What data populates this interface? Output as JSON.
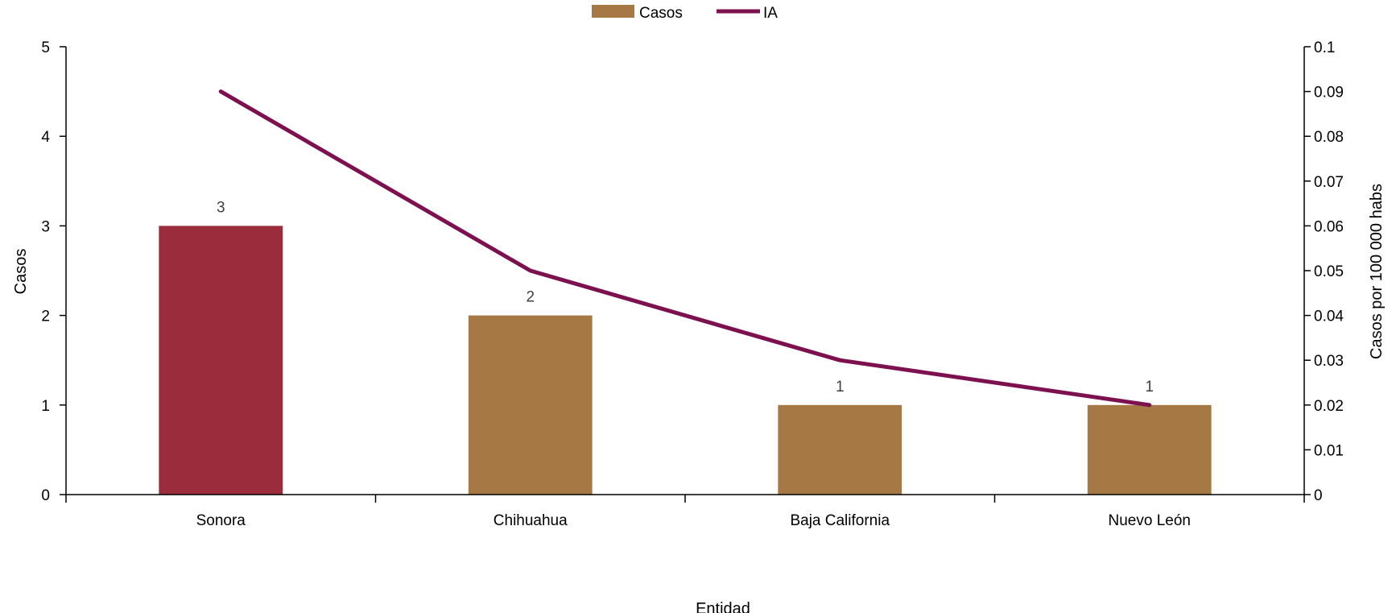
{
  "chart_data": {
    "type": "bar",
    "categories": [
      "Sonora",
      "Chihuahua",
      "Baja California",
      "Nuevo León"
    ],
    "series": [
      {
        "name": "Casos",
        "type": "bar",
        "axis": "left",
        "values": [
          3,
          2,
          1,
          1
        ],
        "data_labels": [
          "3",
          "2",
          "1",
          "1"
        ],
        "color": "#A67944",
        "point_colors": [
          "#9A2C3C",
          "#A67944",
          "#A67944",
          "#A67944"
        ]
      },
      {
        "name": "IA",
        "type": "line",
        "axis": "right",
        "values": [
          0.09,
          0.05,
          0.03,
          0.02
        ],
        "color": "#7D1150"
      }
    ],
    "xlabel": "Entidad",
    "ylabel": "Casos",
    "y2label": "Casos por 100 000 habs",
    "ylim": [
      0,
      5
    ],
    "y2lim": [
      0,
      0.1
    ],
    "yticks": [
      "0",
      "1",
      "2",
      "3",
      "4",
      "5"
    ],
    "y2ticks": [
      "0",
      "0.01",
      "0.02",
      "0.03",
      "0.04",
      "0.05",
      "0.06",
      "0.07",
      "0.08",
      "0.09",
      "0.1"
    ],
    "legend": "top-center",
    "grid": false
  }
}
